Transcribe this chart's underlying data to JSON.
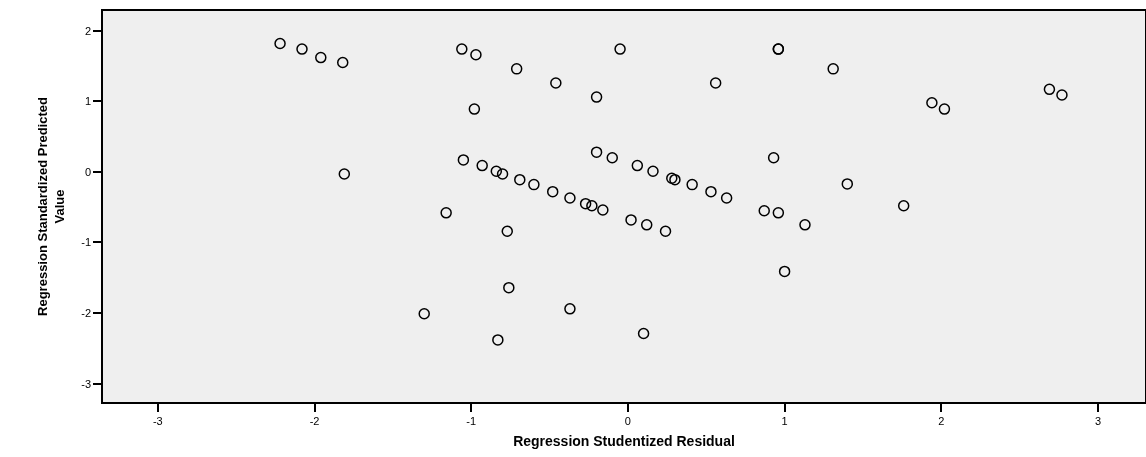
{
  "chart_data": {
    "type": "scatter",
    "xlabel": "Regression Studentized Residual",
    "ylabel": "Regression Standardized Predicted Value",
    "xlim": [
      -3.35,
      3.3
    ],
    "xticks": [
      -3,
      -2,
      -1,
      0,
      1,
      2,
      3
    ],
    "ylim": [
      -3.26,
      2.28
    ],
    "yticks": [
      -3,
      -2,
      -1,
      0,
      1,
      2
    ],
    "grid": false,
    "marker": "circle",
    "series": [
      {
        "color": "#000000",
        "x": [
          -2.22,
          -2.08,
          -1.96,
          -1.82,
          -1.81,
          -1.16,
          -1.3,
          -1.06,
          -0.97,
          -0.71,
          -0.46,
          -0.2,
          -0.05,
          0.96,
          0.96,
          0.56,
          -0.98,
          -1.05,
          -0.93,
          -0.84,
          -0.8,
          -0.69,
          -0.6,
          -0.48,
          -0.37,
          -0.27,
          -0.23,
          -0.16,
          -0.2,
          -0.1,
          0.06,
          0.16,
          0.28,
          0.3,
          0.41,
          0.53,
          0.63,
          0.93,
          0.87,
          0.96,
          -0.77,
          0.02,
          0.12,
          0.24,
          1.0,
          -0.76,
          -0.37,
          -0.83,
          0.1,
          1.31,
          2.69,
          2.77,
          1.94,
          2.02,
          1.4,
          1.13,
          1.76
        ],
        "values": [
          1.82,
          1.74,
          1.62,
          1.55,
          -0.03,
          -0.58,
          -2.01,
          1.74,
          1.66,
          1.46,
          1.26,
          1.06,
          1.74,
          1.74,
          1.74,
          1.26,
          0.89,
          0.17,
          0.09,
          0.01,
          -0.03,
          -0.11,
          -0.18,
          -0.28,
          -0.37,
          -0.45,
          -0.48,
          -0.54,
          0.28,
          0.2,
          0.09,
          0.01,
          -0.09,
          -0.11,
          -0.18,
          -0.28,
          -0.37,
          0.2,
          -0.55,
          -0.58,
          -0.84,
          -0.68,
          -0.75,
          -0.84,
          -1.41,
          -1.64,
          -1.94,
          -2.38,
          -2.29,
          1.46,
          1.17,
          1.09,
          0.98,
          0.89,
          -0.17,
          -0.75,
          -0.48
        ]
      }
    ]
  }
}
